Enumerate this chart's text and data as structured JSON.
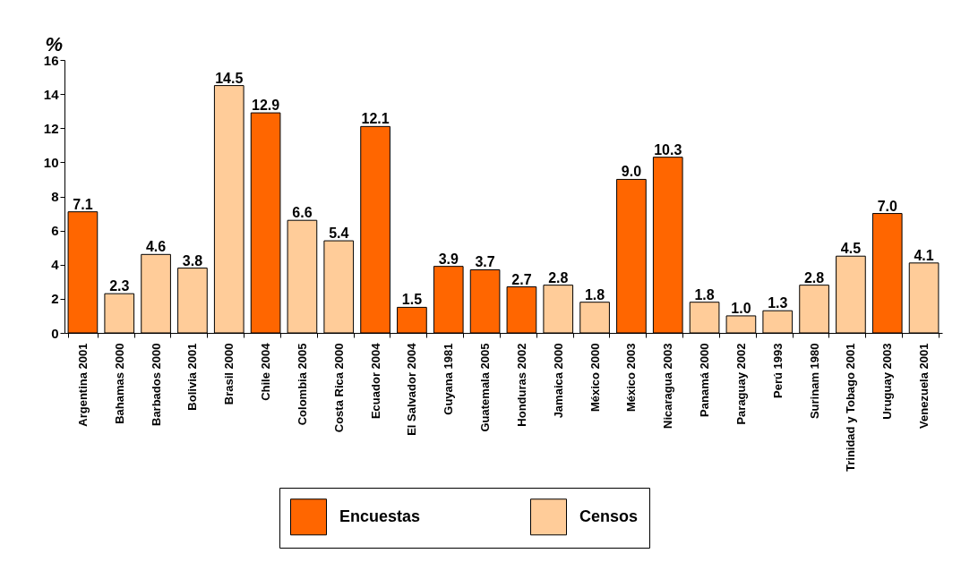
{
  "chart_data": {
    "type": "bar",
    "ylabel": "%",
    "categories": [
      "Argentina 2001",
      "Bahamas 2000",
      "Barbados 2000",
      "Bolivia 2001",
      "Brasil 2000",
      "Chile 2004",
      "Colombia 2005",
      "Costa Rica 2000",
      "Ecuador 2004",
      "El Salvador 2004",
      "Guyana 1981",
      "Guatemala 2005",
      "Honduras 2002",
      "Jamaica 2000",
      "México 2000",
      "México 2003",
      "Nicaragua 2003",
      "Panamá 2000",
      "Paraguay 2002",
      "Perú 1993",
      "Surinam 1980",
      "Trinidad y Tobago 2001",
      "Uruguay 2003",
      "Venezuela 2001"
    ],
    "series": [
      {
        "name": "Encuestas",
        "color": "#ff6600",
        "values": [
          7.1,
          null,
          null,
          null,
          null,
          12.9,
          null,
          null,
          12.1,
          1.5,
          3.9,
          3.7,
          2.7,
          null,
          null,
          9.0,
          10.3,
          null,
          null,
          null,
          null,
          null,
          7.0,
          null
        ],
        "value_labels": [
          "7.1",
          null,
          null,
          null,
          null,
          "12.9",
          null,
          null,
          "12.1",
          "1.5",
          "3.9",
          "3.7",
          "2.7",
          null,
          null,
          "9.0",
          "10.3",
          null,
          null,
          null,
          null,
          null,
          "7.0",
          null
        ]
      },
      {
        "name": "Censos",
        "color": "#ffcc99",
        "values": [
          null,
          2.3,
          4.6,
          3.8,
          14.5,
          null,
          6.6,
          5.4,
          null,
          null,
          null,
          null,
          null,
          2.8,
          1.8,
          null,
          null,
          1.8,
          1.0,
          1.3,
          2.8,
          4.5,
          null,
          4.1
        ],
        "value_labels": [
          null,
          "2.3",
          "4.6",
          "3.8",
          "14.5",
          null,
          "6.6",
          "5.4",
          null,
          null,
          null,
          null,
          null,
          "2.8",
          "1.8",
          null,
          null,
          "1.8",
          "1.0",
          "1.3",
          "2.8",
          "4.5",
          null,
          "4.1"
        ]
      }
    ],
    "ylim": [
      0,
      16
    ],
    "yticks": [
      0,
      2,
      4,
      6,
      8,
      10,
      12,
      14,
      16
    ],
    "legend": "bottom",
    "grid": false
  }
}
